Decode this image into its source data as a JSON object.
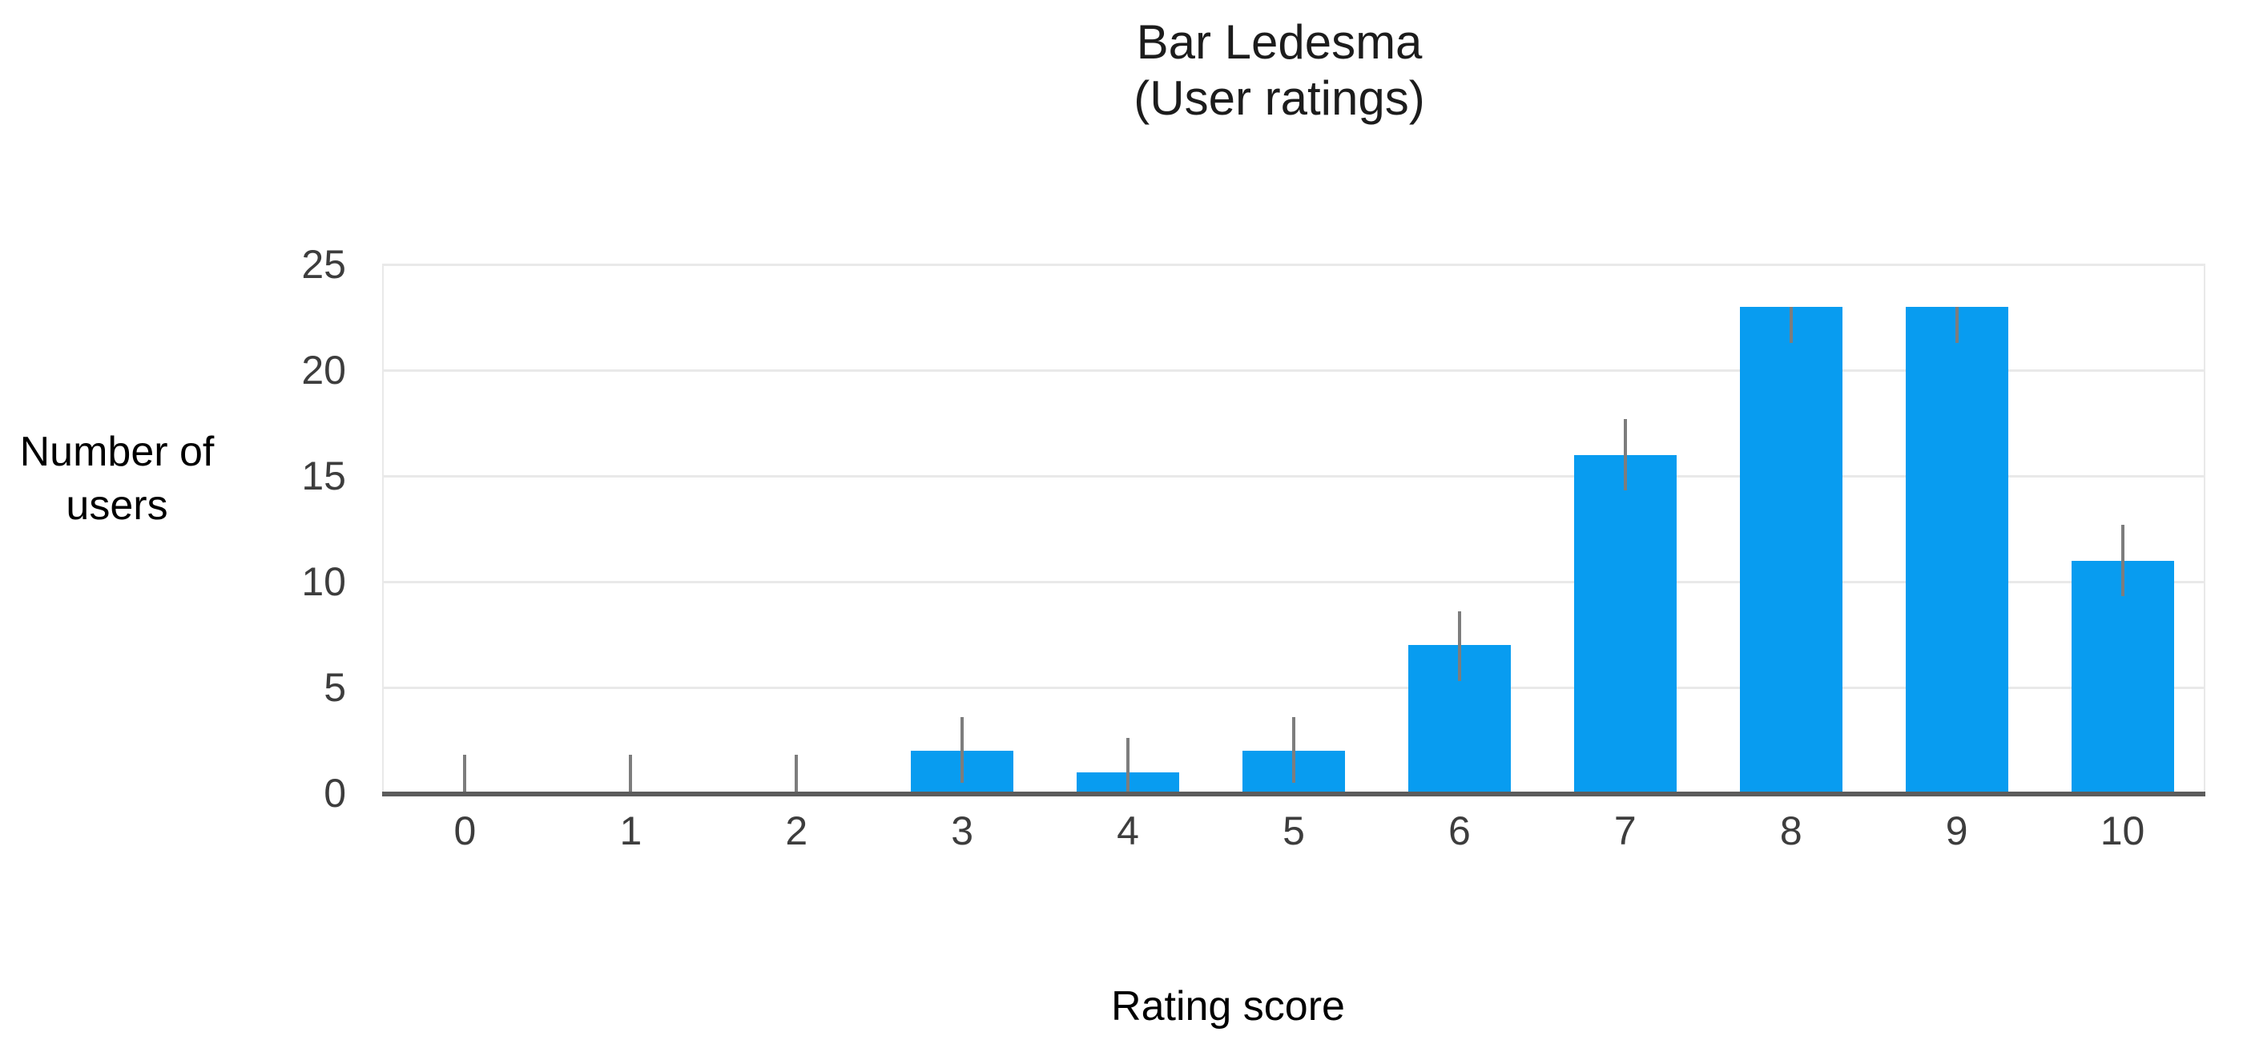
{
  "title": {
    "line1": "Bar Ledesma",
    "line2": "(User ratings)"
  },
  "y_axis": {
    "title_line1": "Number of",
    "title_line2": "users"
  },
  "x_axis": {
    "title": "Rating score"
  },
  "chart_data": {
    "type": "bar",
    "title": "Bar Ledesma (User ratings)",
    "xlabel": "Rating score",
    "ylabel": "Number of users",
    "categories": [
      "0",
      "1",
      "2",
      "3",
      "4",
      "5",
      "6",
      "7",
      "8",
      "9",
      "10"
    ],
    "values": [
      0,
      0,
      0,
      2,
      1,
      2,
      7,
      16,
      23,
      23,
      11
    ],
    "error_whisker_top": [
      1.8,
      1.8,
      1.8,
      3.6,
      2.6,
      3.6,
      8.6,
      17.7,
      23,
      23,
      12.7
    ],
    "error_whisker_bottom": [
      0,
      0,
      0,
      0.5,
      0,
      0.5,
      5.3,
      14.3,
      21.3,
      21.3,
      9.3
    ],
    "y_ticks": [
      0,
      5,
      10,
      15,
      20,
      25
    ],
    "ylim": [
      0,
      25
    ],
    "grid": true,
    "legend": false,
    "colors": {
      "bar": "#089CF0",
      "whisker": "#7d7d7d",
      "axis_line": "#5c5c5c",
      "gridline": "#e9e9e9",
      "tick_text": "#3d3d3d",
      "title_text": "#1c1c1c"
    }
  }
}
